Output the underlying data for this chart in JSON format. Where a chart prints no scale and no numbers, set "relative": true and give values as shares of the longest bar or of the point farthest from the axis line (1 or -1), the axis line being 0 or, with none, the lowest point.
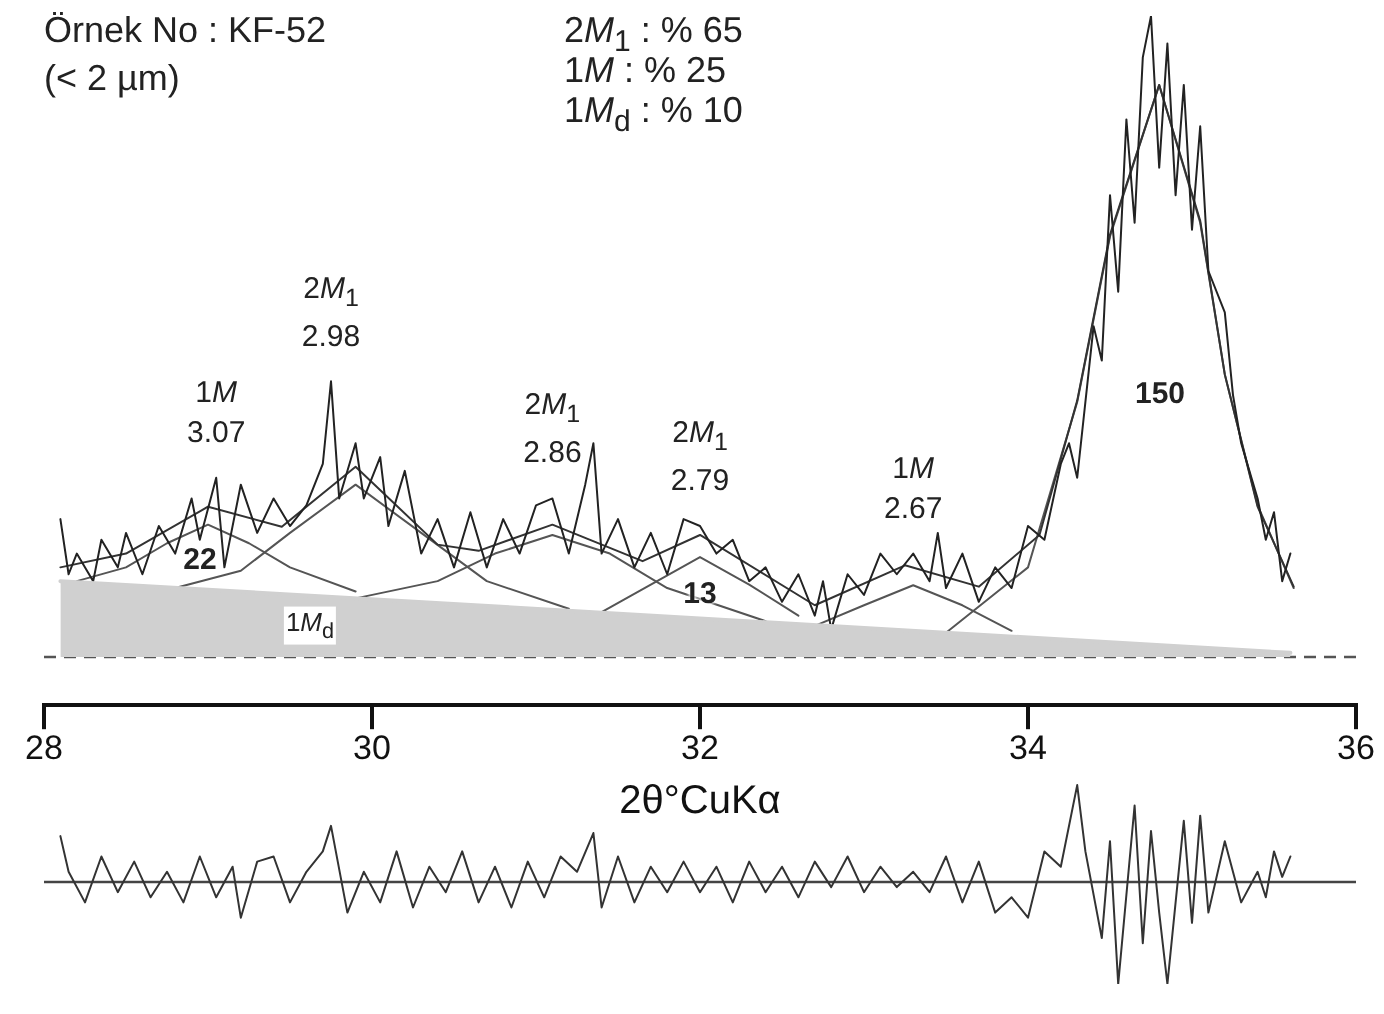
{
  "chart_data": [
    {
      "type": "line",
      "relative": true,
      "xlim": [
        28,
        36
      ],
      "xticks": [
        28,
        30,
        32,
        34,
        36
      ],
      "tick_labels": "x",
      "grid": false,
      "legend": false,
      "marker": "none",
      "line_style": "solid",
      "xlabel": "2θ°CuKα",
      "ref_lines": [
        {
          "axis": "y",
          "value": 0.07,
          "color": "#555555",
          "line_style": "dashed"
        }
      ],
      "series": [
        {
          "type": "area",
          "color": "#d0d0d0",
          "x": [
            28.1,
            35.6
          ],
          "values": [
            0.18,
            0.076
          ]
        },
        {
          "color": "#222222",
          "x": [
            28.1,
            28.15,
            28.2,
            28.3,
            28.35,
            28.45,
            28.5,
            28.6,
            28.7,
            28.8,
            28.9,
            28.95,
            29.05,
            29.1,
            29.2,
            29.3,
            29.4,
            29.5,
            29.6,
            29.7,
            29.75,
            29.8,
            29.9,
            29.95,
            30.05,
            30.1,
            30.2,
            30.3,
            30.4,
            30.5,
            30.6,
            30.7,
            30.8,
            30.9,
            31.0,
            31.1,
            31.2,
            31.3,
            31.35,
            31.4,
            31.5,
            31.6,
            31.7,
            31.8,
            31.9,
            32.0,
            32.1,
            32.2,
            32.3,
            32.4,
            32.5,
            32.6,
            32.7,
            32.75,
            32.8,
            32.9,
            33.0,
            33.1,
            33.2,
            33.3,
            33.4,
            33.45,
            33.5,
            33.6,
            33.7,
            33.8,
            33.9,
            34.0,
            34.1,
            34.2,
            34.25,
            34.3,
            34.4,
            34.45,
            34.5,
            34.55,
            34.6,
            34.65,
            34.7,
            34.75,
            34.8,
            34.85,
            34.9,
            34.95,
            35.0,
            35.05,
            35.1,
            35.2,
            35.25,
            35.3,
            35.4,
            35.45,
            35.5,
            35.55,
            35.6
          ],
          "values": [
            0.27,
            0.19,
            0.22,
            0.18,
            0.24,
            0.2,
            0.25,
            0.19,
            0.26,
            0.22,
            0.3,
            0.24,
            0.33,
            0.2,
            0.32,
            0.25,
            0.3,
            0.26,
            0.29,
            0.35,
            0.47,
            0.3,
            0.38,
            0.3,
            0.36,
            0.26,
            0.34,
            0.22,
            0.27,
            0.2,
            0.28,
            0.2,
            0.27,
            0.22,
            0.29,
            0.3,
            0.22,
            0.32,
            0.38,
            0.22,
            0.27,
            0.2,
            0.25,
            0.19,
            0.27,
            0.26,
            0.22,
            0.24,
            0.18,
            0.2,
            0.15,
            0.19,
            0.13,
            0.18,
            0.11,
            0.19,
            0.16,
            0.22,
            0.19,
            0.22,
            0.18,
            0.25,
            0.17,
            0.22,
            0.15,
            0.2,
            0.17,
            0.26,
            0.24,
            0.35,
            0.38,
            0.33,
            0.55,
            0.5,
            0.74,
            0.6,
            0.85,
            0.7,
            0.94,
            1,
            0.78,
            0.96,
            0.74,
            0.9,
            0.69,
            0.84,
            0.63,
            0.57,
            0.45,
            0.38,
            0.3,
            0.24,
            0.28,
            0.18,
            0.22
          ]
        },
        {
          "color": "#333333",
          "x": [
            28.1,
            28.5,
            29.0,
            29.45,
            29.9,
            30.4,
            30.65,
            31.1,
            31.65,
            32.0,
            32.7,
            33.25,
            33.7,
            34.07,
            34.3,
            34.5,
            34.8,
            35.05,
            35.2,
            35.4,
            35.62
          ],
          "values": [
            0.2,
            0.22,
            0.288,
            0.259,
            0.346,
            0.233,
            0.224,
            0.262,
            0.209,
            0.247,
            0.145,
            0.203,
            0.172,
            0.247,
            0.442,
            0.683,
            0.9,
            0.703,
            0.48,
            0.288,
            0.172
          ]
        },
        {
          "color": "#555555",
          "x": [
            28.2,
            28.5,
            28.75,
            29.0,
            29.25,
            29.5,
            29.9
          ],
          "values": [
            0.18,
            0.2,
            0.235,
            0.262,
            0.235,
            0.2,
            0.165
          ]
        },
        {
          "color": "#555555",
          "x": [
            28.8,
            29.2,
            29.5,
            29.9,
            30.3,
            30.7,
            31.2
          ],
          "values": [
            0.17,
            0.195,
            0.25,
            0.32,
            0.25,
            0.18,
            0.14
          ]
        },
        {
          "color": "#555555",
          "x": [
            29.9,
            30.4,
            30.75,
            31.1,
            31.45,
            31.8,
            32.4
          ],
          "values": [
            0.155,
            0.18,
            0.22,
            0.247,
            0.22,
            0.17,
            0.122
          ]
        },
        {
          "color": "#555555",
          "x": [
            31.4,
            31.7,
            32.0,
            32.3,
            32.6
          ],
          "values": [
            0.135,
            0.175,
            0.215,
            0.175,
            0.13
          ]
        },
        {
          "color": "#555555",
          "x": [
            32.7,
            33.0,
            33.3,
            33.6,
            33.9
          ],
          "values": [
            0.115,
            0.145,
            0.174,
            0.145,
            0.108
          ]
        },
        {
          "color": "#555555",
          "x": [
            33.5,
            34.0,
            34.3,
            34.5,
            34.8,
            35.05,
            35.2,
            35.4,
            35.62
          ],
          "values": [
            0.105,
            0.2,
            0.44,
            0.68,
            0.9,
            0.7,
            0.48,
            0.29,
            0.17
          ]
        }
      ],
      "annotations": [
        "Örnek No : KF-52",
        "(< 2 µm)",
        "2M$_{1}$ : % 65",
        "1M : % 25",
        "1M$_{d}$ : % 10",
        "22",
        "13",
        "150",
        "1M$_{d}$",
        {
          "text": "1M\n3.07",
          "x": 29.05,
          "y": 0.33
        },
        {
          "text": "2M$_{1}$\n2.98",
          "x": 29.75,
          "y": 0.47
        },
        {
          "text": "2M$_{1}$\n2.86",
          "x": 31.1,
          "y": 0.3
        },
        {
          "text": "2M$_{1}$\n2.79",
          "x": 32.0,
          "y": 0.26
        },
        {
          "text": "1M\n2.67",
          "x": 33.3,
          "y": 0.22
        }
      ]
    },
    {
      "type": "line",
      "relative": true,
      "xlim": [
        28,
        36
      ],
      "tick_labels": false,
      "grid": false,
      "legend": false,
      "marker": "none",
      "line_style": "solid",
      "ref_lines": [
        {
          "axis": "y",
          "value": 0,
          "color": "#444444"
        }
      ],
      "series": [
        {
          "color": "#333333",
          "x": [
            28.1,
            28.15,
            28.25,
            28.35,
            28.45,
            28.55,
            28.65,
            28.75,
            28.85,
            28.95,
            29.05,
            29.15,
            29.2,
            29.3,
            29.4,
            29.5,
            29.6,
            29.7,
            29.75,
            29.85,
            29.95,
            30.05,
            30.15,
            30.25,
            30.35,
            30.45,
            30.55,
            30.65,
            30.75,
            30.85,
            30.95,
            31.05,
            31.15,
            31.25,
            31.35,
            31.4,
            31.5,
            31.6,
            31.7,
            31.8,
            31.9,
            32.0,
            32.1,
            32.2,
            32.3,
            32.4,
            32.5,
            32.6,
            32.7,
            32.8,
            32.9,
            33.0,
            33.1,
            33.2,
            33.3,
            33.4,
            33.5,
            33.6,
            33.7,
            33.8,
            33.9,
            34.0,
            34.1,
            34.2,
            34.3,
            34.35,
            34.45,
            34.5,
            34.55,
            34.65,
            34.7,
            34.75,
            34.8,
            34.85,
            34.95,
            35.0,
            35.05,
            35.1,
            35.2,
            35.3,
            35.4,
            35.45,
            35.5,
            35.55,
            35.6
          ],
          "values": [
            0.45,
            0.1,
            -0.2,
            0.25,
            -0.1,
            0.2,
            -0.15,
            0.1,
            -0.2,
            0.25,
            -0.15,
            0.15,
            -0.35,
            0.2,
            0.25,
            -0.2,
            0.1,
            0.3,
            0.55,
            -0.3,
            0.1,
            -0.2,
            0.3,
            -0.25,
            0.15,
            -0.1,
            0.3,
            -0.2,
            0.15,
            -0.25,
            0.2,
            -0.15,
            0.25,
            0.1,
            0.48,
            -0.25,
            0.25,
            -0.2,
            0.15,
            -0.1,
            0.2,
            -0.1,
            0.15,
            -0.2,
            0.2,
            -0.1,
            0.15,
            -0.15,
            0.2,
            -0.05,
            0.25,
            -0.1,
            0.15,
            -0.05,
            0.1,
            -0.1,
            0.25,
            -0.2,
            0.2,
            -0.3,
            -0.15,
            -0.35,
            0.3,
            0.15,
            0.95,
            0.3,
            -0.55,
            0.4,
            -1,
            0.75,
            -0.6,
            0.5,
            -0.3,
            -1,
            0.6,
            -0.4,
            0.65,
            -0.3,
            0.4,
            -0.2,
            0.1,
            -0.15,
            0.3,
            0.05,
            0.25
          ]
        }
      ]
    }
  ]
}
